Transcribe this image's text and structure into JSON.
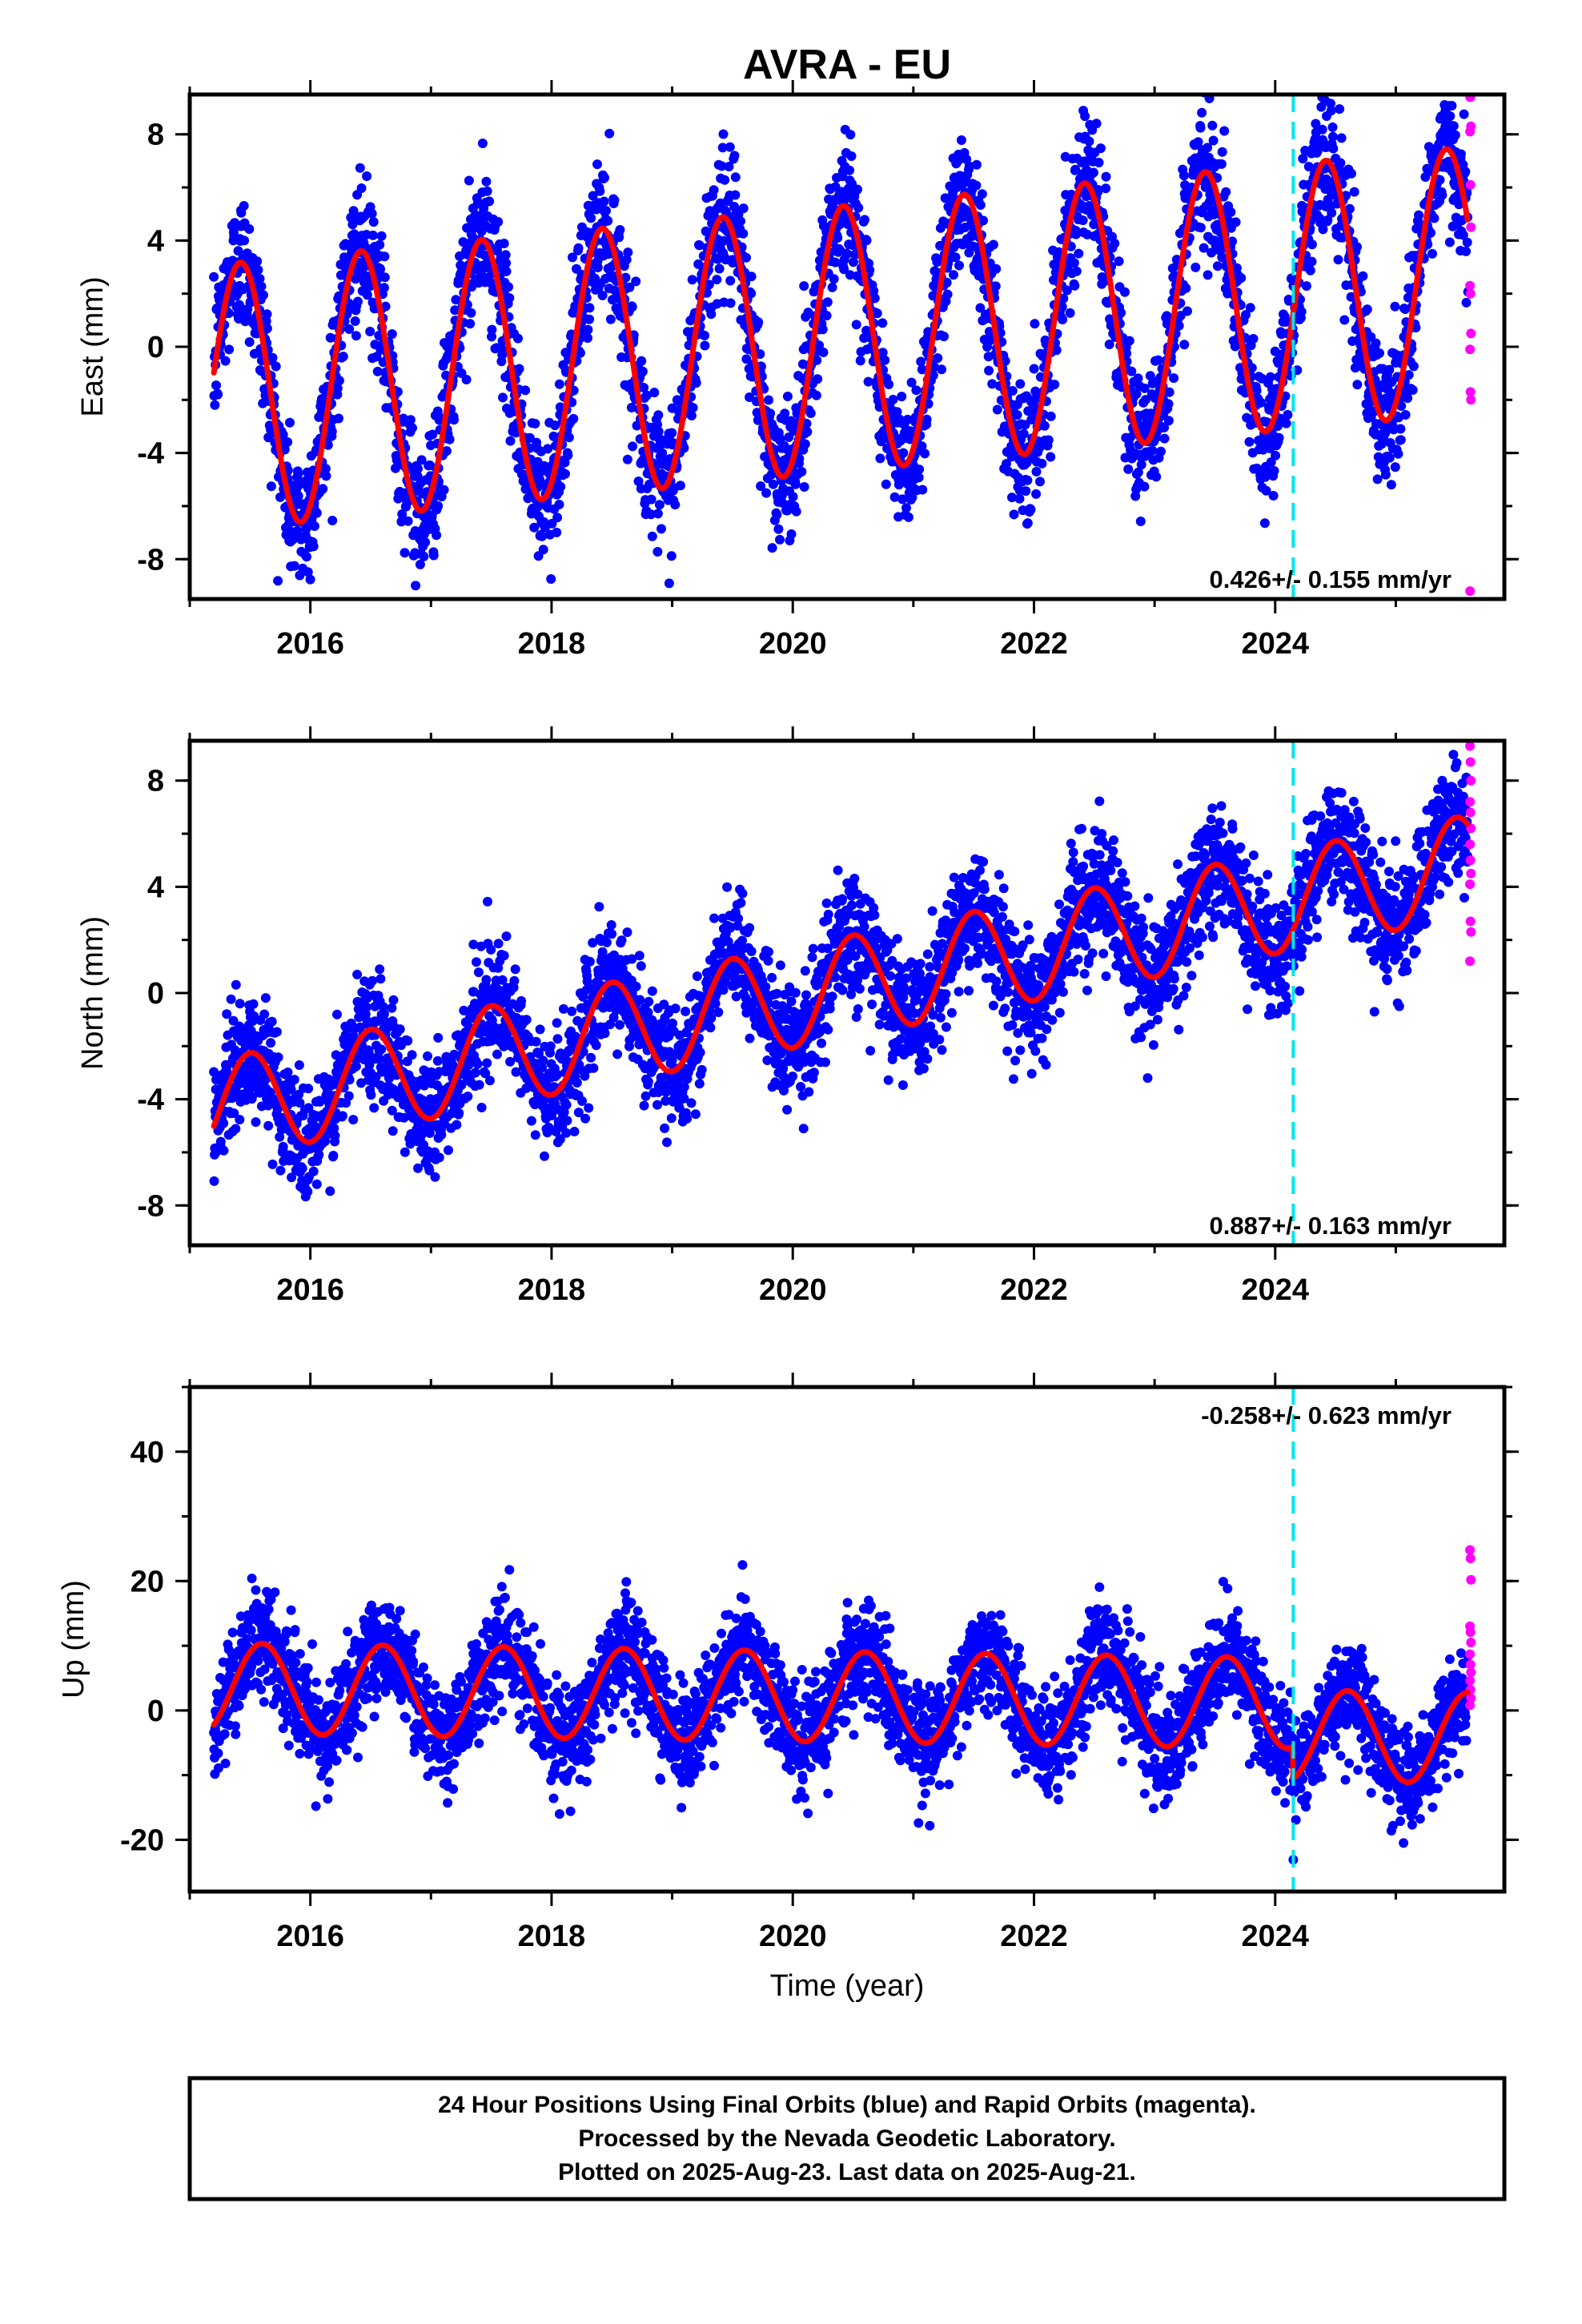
{
  "chart_data": {
    "type": "scatter",
    "title": "AVRA - EU",
    "xlabel": "Time (year)",
    "colors": {
      "final_orbits": "#0000ff",
      "rapid_orbits": "#ff00ff",
      "model_fit": "#ff0000",
      "event_marker": "#00e5ee"
    },
    "x_range": [
      2015.0,
      2025.9
    ],
    "x_ticks": [
      "2016",
      "2018",
      "2020",
      "2022",
      "2024"
    ],
    "event_marker_year": 2024.15,
    "panels": [
      {
        "name": "East",
        "ylabel": "East (mm)",
        "ylim": [
          -9.5,
          9.5
        ],
        "y_ticks": [
          "-8",
          "-4",
          "0",
          "4",
          "8"
        ],
        "rate_label": "0.426+/- 0.155 mm/yr",
        "rate_label_position": "bottom-right",
        "trend": 0.426,
        "amplitude": 5.0,
        "offset_at_2015": -2.0,
        "scatter": 1.3,
        "step_at_event": 0.0,
        "peak_phase": 0.42,
        "rapid_values": [
          9.4,
          9.4,
          8.3,
          8.1,
          6.1,
          4.5,
          2.3,
          2.0,
          0.5,
          -0.1,
          -1.7,
          -2.0,
          -9.2
        ]
      },
      {
        "name": "North",
        "ylabel": "North (mm)",
        "ylim": [
          -9.5,
          9.5
        ],
        "y_ticks": [
          "-8",
          "-4",
          "0",
          "4",
          "8"
        ],
        "rate_label": "0.887+/- 0.163 mm/yr",
        "rate_label_position": "bottom-right",
        "trend": 0.887,
        "amplitude": 1.9,
        "offset_at_2015": -4.6,
        "scatter": 1.1,
        "step_at_event": 0.0,
        "peak_phase": 0.5,
        "rapid_values": [
          9.3,
          8.7,
          8.0,
          7.2,
          6.8,
          6.2,
          5.6,
          5.0,
          4.5,
          4.1,
          2.7,
          2.3,
          1.2
        ]
      },
      {
        "name": "Up",
        "ylabel": "Up (mm)",
        "ylim": [
          -28,
          50
        ],
        "y_ticks": [
          "-20",
          "0",
          "20",
          "40"
        ],
        "rate_label": "-0.258+/- 0.623 mm/yr",
        "rate_label_position": "top-right",
        "trend": -0.258,
        "amplitude": 7.0,
        "offset_at_2015": 3.5,
        "scatter": 4.0,
        "step_at_event": -5.0,
        "peak_phase": 0.6,
        "rapid_values": [
          24.8,
          23.5,
          20.2,
          13.0,
          12.1,
          10.5,
          8.7,
          7.1,
          5.9,
          4.6,
          3.2,
          1.9,
          0.8
        ]
      }
    ],
    "footer_lines": [
      "24 Hour Positions Using Final Orbits (blue) and Rapid Orbits (magenta).",
      "Processed by the Nevada Geodetic Laboratory.",
      "Plotted on 2025-Aug-23. Last data on 2025-Aug-21."
    ]
  }
}
